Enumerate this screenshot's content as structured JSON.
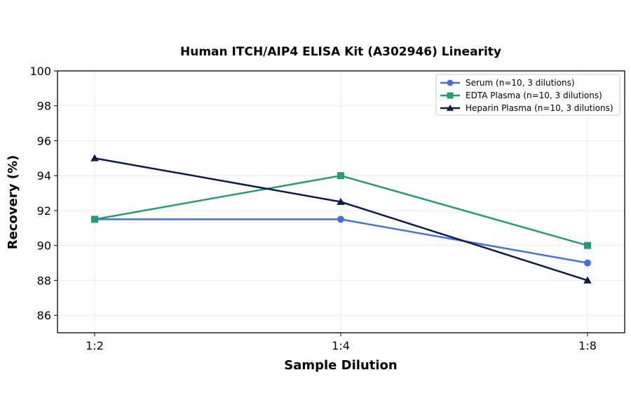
{
  "chart_data": {
    "type": "line",
    "title": "Human ITCH/AIP4 ELISA Kit (A302946) Linearity",
    "xlabel": "Sample Dilution",
    "ylabel": "Recovery (%)",
    "categories": [
      "1:2",
      "1:4",
      "1:8"
    ],
    "ylim": [
      85,
      100
    ],
    "yticks": [
      86,
      88,
      90,
      92,
      94,
      96,
      98,
      100
    ],
    "grid": true,
    "legend_position": "top-right",
    "series": [
      {
        "name": "Serum (n=10, 3 dilutions)",
        "values": [
          91.5,
          91.5,
          89.0
        ],
        "color": "#4a6fd6",
        "marker": "circle"
      },
      {
        "name": "EDTA Plasma (n=10, 3 dilutions)",
        "values": [
          91.5,
          94.0,
          90.0
        ],
        "color": "#2a9a75",
        "marker": "square"
      },
      {
        "name": "Heparin Plasma (n=10, 3 dilutions)",
        "values": [
          95.0,
          92.5,
          88.0
        ],
        "color": "#0f1b45",
        "marker": "triangle"
      }
    ]
  }
}
